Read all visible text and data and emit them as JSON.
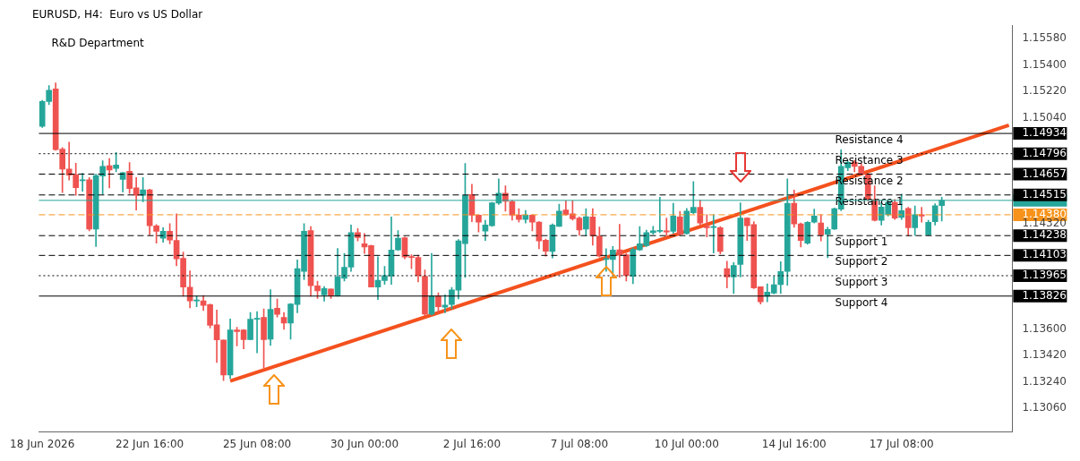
{
  "chart_data": {
    "type": "candlestick",
    "title": "EURUSD, H4:  Euro vs US Dollar",
    "annotations": [
      "R&D Department"
    ],
    "grid": false,
    "categories": [
      "18 Jun 2026",
      null,
      null,
      null,
      null,
      null,
      null,
      null,
      null,
      null,
      null,
      null,
      null,
      null,
      null,
      null,
      "22 Jun 16:00",
      null,
      null,
      null,
      null,
      null,
      null,
      null,
      null,
      null,
      null,
      null,
      null,
      null,
      null,
      null,
      "25 Jun 08:00",
      null,
      null,
      null,
      null,
      null,
      null,
      null,
      null,
      null,
      null,
      null,
      null,
      null,
      null,
      null,
      "30 Jun 00:00",
      null,
      null,
      null,
      null,
      null,
      null,
      null,
      null,
      null,
      null,
      null,
      null,
      null,
      null,
      null,
      "2 Jul 16:00",
      null,
      null,
      null,
      null,
      null,
      null,
      null,
      null,
      null,
      null,
      null,
      null,
      null,
      null,
      null,
      "7 Jul 08:00",
      null,
      null,
      null,
      null,
      null,
      null,
      null,
      null,
      null,
      null,
      null,
      null,
      null,
      null,
      null,
      "10 Jul 00:00",
      null,
      null,
      null,
      null,
      null,
      null,
      null,
      null,
      null,
      null,
      null,
      null,
      null,
      null,
      null,
      "14 Jul 16:00",
      null,
      null,
      null,
      null,
      null,
      null,
      null,
      null,
      null,
      null,
      null,
      null,
      null,
      null,
      null,
      "17 Jul 08:00",
      null,
      null,
      null,
      null,
      null,
      null,
      null,
      null,
      null,
      null,
      null,
      null,
      null,
      null,
      null,
      null
    ],
    "ohlc": [
      [
        1.14983,
        1.1516,
        1.14975,
        1.15152
      ],
      [
        1.15152,
        1.1526,
        1.1513,
        1.15228
      ],
      [
        1.15237,
        1.15278,
        1.14819,
        1.14823
      ],
      [
        1.14828,
        1.14838,
        1.14531,
        1.14691
      ],
      [
        1.14691,
        1.14874,
        1.14616,
        1.1465
      ],
      [
        1.14653,
        1.14732,
        1.14512,
        1.14565
      ],
      [
        1.14612,
        1.14663,
        1.1454,
        1.14619
      ],
      [
        1.14619,
        1.14634,
        1.14271,
        1.14282
      ],
      [
        1.14282,
        1.14657,
        1.14164,
        1.14648
      ],
      [
        1.14644,
        1.14748,
        1.14521,
        1.1471
      ],
      [
        1.14714,
        1.14763,
        1.14563,
        1.14685
      ],
      [
        1.14695,
        1.14804,
        1.14672,
        1.14719
      ],
      [
        1.14621,
        1.14668,
        1.14536,
        1.14667
      ],
      [
        1.14676,
        1.14736,
        1.14525,
        1.14559
      ],
      [
        1.14563,
        1.14634,
        1.14412,
        1.14512
      ],
      [
        1.14512,
        1.14634,
        1.14469,
        1.1455
      ],
      [
        1.1455,
        1.14555,
        1.14243,
        1.14305
      ],
      [
        1.14305,
        1.14314,
        1.14186,
        1.14267
      ],
      [
        1.1422,
        1.14292,
        1.14192,
        1.14267
      ],
      [
        1.14267,
        1.1432,
        1.14182,
        1.14207
      ],
      [
        1.14205,
        1.14386,
        1.14032,
        1.14079
      ],
      [
        1.14083,
        1.14126,
        1.13825,
        1.13887
      ],
      [
        1.13887,
        1.13998,
        1.13745,
        1.13793
      ],
      [
        1.13793,
        1.13825,
        1.13753,
        1.13798
      ],
      [
        1.13793,
        1.1383,
        1.13727,
        1.13762
      ],
      [
        1.13768,
        1.13772,
        1.13608,
        1.13627
      ],
      [
        1.13631,
        1.13731,
        1.13373,
        1.13527
      ],
      [
        1.13527,
        1.13527,
        1.1325,
        1.13288
      ],
      [
        1.13288,
        1.1367,
        1.13264,
        1.13595
      ],
      [
        1.13595,
        1.13614,
        1.13486,
        1.13584
      ],
      [
        1.13595,
        1.13599,
        1.13467,
        1.13529
      ],
      [
        1.13529,
        1.13715,
        1.13529,
        1.13668
      ],
      [
        1.13668,
        1.13721,
        1.13439,
        1.13674
      ],
      [
        1.1368,
        1.13738,
        1.13335,
        1.13529
      ],
      [
        1.13533,
        1.1387,
        1.13489,
        1.13736
      ],
      [
        1.13744,
        1.13806,
        1.13683,
        1.13702
      ],
      [
        1.1368,
        1.13715,
        1.13599,
        1.13642
      ],
      [
        1.13642,
        1.13776,
        1.13533,
        1.13772
      ],
      [
        1.13768,
        1.14073,
        1.13712,
        1.14013
      ],
      [
        1.13994,
        1.1432,
        1.13938,
        1.14267
      ],
      [
        1.14273,
        1.14299,
        1.13825,
        1.13896
      ],
      [
        1.13896,
        1.13928,
        1.1381,
        1.13862
      ],
      [
        1.13834,
        1.13891,
        1.13791,
        1.13877
      ],
      [
        1.13875,
        1.13875,
        1.1381,
        1.13828
      ],
      [
        1.13828,
        1.1415,
        1.13825,
        1.13957
      ],
      [
        1.13947,
        1.14117,
        1.13929,
        1.14023
      ],
      [
        1.14023,
        1.14311,
        1.13994,
        1.14258
      ],
      [
        1.14258,
        1.14286,
        1.14202,
        1.14224
      ],
      [
        1.14183,
        1.14252,
        1.14117,
        1.1416
      ],
      [
        1.1417,
        1.14173,
        1.13887,
        1.13887
      ],
      [
        1.13887,
        1.14094,
        1.13802,
        1.13934
      ],
      [
        1.13932,
        1.14028,
        1.13906,
        1.13966
      ],
      [
        1.13962,
        1.14365,
        1.13906,
        1.14139
      ],
      [
        1.14141,
        1.14273,
        1.14136,
        1.1422
      ],
      [
        1.14224,
        1.14228,
        1.14079,
        1.14092
      ],
      [
        1.14092,
        1.14107,
        1.14013,
        1.14089
      ],
      [
        1.14089,
        1.14104,
        1.13923,
        1.13966
      ],
      [
        1.13962,
        1.14004,
        1.13693,
        1.13703
      ],
      [
        1.13703,
        1.14117,
        1.13697,
        1.13825
      ],
      [
        1.13825,
        1.13848,
        1.13712,
        1.13753
      ],
      [
        1.1375,
        1.13834,
        1.13712,
        1.13765
      ],
      [
        1.13769,
        1.13885,
        1.1374,
        1.13868
      ],
      [
        1.13866,
        1.14211,
        1.13806,
        1.14202
      ],
      [
        1.14183,
        1.14729,
        1.13953,
        1.14512
      ],
      [
        1.14518,
        1.14588,
        1.14333,
        1.14377
      ],
      [
        1.14377,
        1.1438,
        1.14262,
        1.1433
      ],
      [
        1.14268,
        1.14343,
        1.14205,
        1.14311
      ],
      [
        1.14305,
        1.14465,
        1.143,
        1.14461
      ],
      [
        1.1446,
        1.14625,
        1.1445,
        1.14527
      ],
      [
        1.14527,
        1.14578,
        1.14405,
        1.14471
      ],
      [
        1.14471,
        1.14478,
        1.14343,
        1.14377
      ],
      [
        1.14377,
        1.14422,
        1.1433,
        1.14348
      ],
      [
        1.14348,
        1.14409,
        1.14324,
        1.14377
      ],
      [
        1.14377,
        1.1438,
        1.14271,
        1.1433
      ],
      [
        1.1433,
        1.14333,
        1.14149,
        1.14202
      ],
      [
        1.14207,
        1.14215,
        1.14098,
        1.14132
      ],
      [
        1.1413,
        1.14318,
        1.14085,
        1.14311
      ],
      [
        1.14301,
        1.14452,
        1.143,
        1.14405
      ],
      [
        1.14413,
        1.14475,
        1.14377,
        1.1438
      ],
      [
        1.14386,
        1.14475,
        1.14343,
        1.14352
      ],
      [
        1.14358,
        1.14365,
        1.14239,
        1.14277
      ],
      [
        1.14283,
        1.14422,
        1.14236,
        1.14367
      ],
      [
        1.14365,
        1.14422,
        1.14173,
        1.14236
      ],
      [
        1.14234,
        1.14296,
        1.14092,
        1.14098
      ],
      [
        1.14075,
        1.14149,
        1.13994,
        1.14079
      ],
      [
        1.14075,
        1.14164,
        1.13985,
        1.14139
      ],
      [
        1.14141,
        1.14315,
        1.13953,
        1.14107
      ],
      [
        1.14107,
        1.14117,
        1.13929,
        1.13966
      ],
      [
        1.13961,
        1.14155,
        1.1391,
        1.14145
      ],
      [
        1.14141,
        1.143,
        1.14136,
        1.14183
      ],
      [
        1.14169,
        1.14276,
        1.14163,
        1.14258
      ],
      [
        1.14258,
        1.14301,
        1.14248,
        1.14271
      ],
      [
        1.14267,
        1.14499,
        1.14258,
        1.14271
      ],
      [
        1.14271,
        1.14357,
        1.14239,
        1.14263
      ],
      [
        1.14267,
        1.14459,
        1.14254,
        1.14371
      ],
      [
        1.14365,
        1.14403,
        1.14243,
        1.14248
      ],
      [
        1.14252,
        1.14423,
        1.14248,
        1.14405
      ],
      [
        1.14393,
        1.14606,
        1.14386,
        1.14431
      ],
      [
        1.14431,
        1.1448,
        1.14305,
        1.14324
      ],
      [
        1.14301,
        1.1438,
        1.14229,
        1.14292
      ],
      [
        1.14293,
        1.1438,
        1.1412,
        1.14295
      ],
      [
        1.14292,
        1.14299,
        1.14113,
        1.1413
      ],
      [
        1.14013,
        1.14064,
        1.13881,
        1.13956
      ],
      [
        1.13956,
        1.14054,
        1.13843,
        1.14035
      ],
      [
        1.14041,
        1.14461,
        1.13956,
        1.14357
      ],
      [
        1.14357,
        1.14361,
        1.14205,
        1.14305
      ],
      [
        1.14314,
        1.14333,
        1.13877,
        1.13881
      ],
      [
        1.1389,
        1.1389,
        1.13772,
        1.13787
      ],
      [
        1.13825,
        1.13909,
        1.13787,
        1.13853
      ],
      [
        1.13847,
        1.1396,
        1.1384,
        1.13904
      ],
      [
        1.13904,
        1.1406,
        1.13843,
        1.13994
      ],
      [
        1.13994,
        1.14625,
        1.139,
        1.14459
      ],
      [
        1.14459,
        1.14549,
        1.14295,
        1.14318
      ],
      [
        1.14318,
        1.14324,
        1.1416,
        1.14205
      ],
      [
        1.14186,
        1.14333,
        1.14179,
        1.14329
      ],
      [
        1.14329,
        1.14418,
        1.14324,
        1.14371
      ],
      [
        1.14324,
        1.1438,
        1.14201,
        1.14243
      ],
      [
        1.14248,
        1.14295,
        1.14088,
        1.1428
      ],
      [
        1.14282,
        1.14427,
        1.1428,
        1.14421
      ],
      [
        1.14418,
        1.14823,
        1.14408,
        1.1471
      ],
      [
        1.147,
        1.14747,
        1.14681,
        1.14738
      ],
      [
        1.14738,
        1.14751,
        1.14672,
        1.1471
      ],
      [
        1.1471,
        1.14728,
        1.14649,
        1.14657
      ],
      [
        1.14657,
        1.14662,
        1.14474,
        1.14484
      ],
      [
        1.14484,
        1.14578,
        1.14337,
        1.14342
      ],
      [
        1.14342,
        1.14465,
        1.1431,
        1.14433
      ],
      [
        1.1438,
        1.14469,
        1.14371,
        1.14465
      ],
      [
        1.14465,
        1.14484,
        1.14348,
        1.14357
      ],
      [
        1.14361,
        1.14521,
        1.14348,
        1.14408
      ],
      [
        1.14423,
        1.14431,
        1.14235,
        1.14292
      ],
      [
        1.14292,
        1.1444,
        1.14239,
        1.1438
      ],
      [
        1.1438,
        1.14431,
        1.14329,
        1.14371
      ],
      [
        1.14243,
        1.14342,
        1.14239,
        1.14329
      ],
      [
        1.14333,
        1.14455,
        1.1431,
        1.14442
      ],
      [
        1.14442,
        1.14499,
        1.14337,
        1.14478
      ],
      null,
      null,
      null,
      null,
      null,
      null,
      null,
      null,
      null,
      null
    ],
    "colors": [
      "#26a69a",
      "#26a69a",
      "#ef5350",
      "#ef5350",
      "#ef5350",
      "#ef5350",
      "#26a69a",
      "#ef5350",
      "#26a69a",
      "#26a69a",
      "#ef5350",
      "#26a69a",
      "#26a69a",
      "#ef5350",
      "#ef5350",
      "#26a69a",
      "#ef5350",
      "#ef5350",
      "#26a69a",
      "#ef5350",
      "#ef5350",
      "#ef5350",
      "#ef5350",
      "#26a69a",
      "#ef5350",
      "#ef5350",
      "#ef5350",
      "#ef5350",
      "#26a69a",
      "#ef5350",
      "#ef5350",
      "#26a69a",
      "#26a69a",
      "#ef5350",
      "#26a69a",
      "#ef5350",
      "#ef5350",
      "#26a69a",
      "#26a69a",
      "#26a69a",
      "#ef5350",
      "#ef5350",
      "#26a69a",
      "#ef5350",
      "#26a69a",
      "#26a69a",
      "#26a69a",
      "#ef5350",
      "#ef5350",
      "#ef5350",
      "#26a69a",
      "#26a69a",
      "#26a69a",
      "#26a69a",
      "#ef5350",
      "#ef5350",
      "#ef5350",
      "#ef5350",
      "#26a69a",
      "#ef5350",
      "#26a69a",
      "#26a69a",
      "#26a69a",
      "#26a69a",
      "#ef5350",
      "#ef5350",
      "#26a69a",
      "#26a69a",
      "#26a69a",
      "#ef5350",
      "#ef5350",
      "#ef5350",
      "#26a69a",
      "#ef5350",
      "#ef5350",
      "#ef5350",
      "#26a69a",
      "#26a69a",
      "#ef5350",
      "#ef5350",
      "#ef5350",
      "#26a69a",
      "#ef5350",
      "#ef5350",
      "#26a69a",
      "#26a69a",
      "#ef5350",
      "#ef5350",
      "#26a69a",
      "#26a69a",
      "#26a69a",
      "#26a69a",
      "#26a69a",
      "#ef5350",
      "#26a69a",
      "#ef5350",
      "#26a69a",
      "#26a69a",
      "#ef5350",
      "#ef5350",
      "#26a69a",
      "#ef5350",
      "#ef5350",
      "#26a69a",
      "#26a69a",
      "#ef5350",
      "#ef5350",
      "#ef5350",
      "#26a69a",
      "#26a69a",
      "#26a69a",
      "#26a69a",
      "#ef5350",
      "#ef5350",
      "#26a69a",
      "#26a69a",
      "#ef5350",
      "#26a69a",
      "#26a69a",
      "#26a69a",
      "#26a69a",
      "#ef5350",
      "#ef5350",
      "#ef5350",
      "#ef5350",
      "#26a69a",
      "#26a69a",
      "#ef5350",
      "#26a69a",
      "#ef5350",
      "#26a69a",
      "#ef5350",
      "#26a69a",
      "#26a69a",
      "#26a69a",
      null,
      null,
      null,
      null,
      null,
      null,
      null,
      null,
      null,
      null
    ],
    "series": [
      {
        "type": "line",
        "color": "#f4511e",
        "values": [
          null,
          null,
          null,
          null,
          null,
          null,
          null,
          null,
          null,
          null,
          null,
          null,
          null,
          null,
          null,
          null,
          null,
          null,
          null,
          null,
          null,
          null,
          null,
          null,
          null,
          null,
          null,
          null,
          1.13247,
          null,
          null,
          null,
          null,
          null,
          null,
          null,
          null,
          null,
          null,
          null,
          null,
          null,
          null,
          null,
          null,
          null,
          null,
          null,
          null,
          null,
          null,
          null,
          null,
          null,
          null,
          null,
          null,
          null,
          null,
          null,
          null,
          null,
          null,
          null,
          null,
          null,
          null,
          null,
          null,
          null,
          null,
          null,
          null,
          null,
          null,
          null,
          null,
          null,
          null,
          null,
          null,
          null,
          null,
          null,
          null,
          null,
          null,
          null,
          null,
          null,
          null,
          null,
          null,
          null,
          null,
          null,
          null,
          null,
          null,
          null,
          null,
          null,
          null,
          null,
          null,
          null,
          null,
          null,
          null,
          null,
          null,
          null,
          null,
          null,
          null,
          null,
          null,
          null,
          null,
          null,
          null,
          null,
          null,
          null,
          null,
          null,
          null,
          null,
          null,
          null,
          null,
          null,
          null,
          null,
          null,
          null,
          null,
          null,
          null,
          null,
          null,
          null,
          null,
          null,
          1.1499
        ]
      }
    ],
    "ylim": [
      1.129,
      1.1567
    ],
    "yticks": [
      {
        "value": 1.1558,
        "label": "1.15580"
      },
      {
        "value": 1.154,
        "label": "1.15400"
      },
      {
        "value": 1.1522,
        "label": "1.15220"
      },
      {
        "value": 1.1504,
        "label": "1.15040"
      },
      {
        "value": 1.14934,
        "label": "1.14934"
      },
      {
        "value": 1.14796,
        "label": "1.14796"
      },
      {
        "value": 1.14657,
        "label": "1.14657"
      },
      {
        "value": 1.14515,
        "label": "1.14515"
      },
      {
        "value": 1.1438,
        "label": "1.14380"
      },
      {
        "value": 1.1432,
        "label": "1.14320"
      },
      {
        "value": 1.14238,
        "label": "1.14238"
      },
      {
        "value": 1.14103,
        "label": "1.14103"
      },
      {
        "value": 1.13965,
        "label": "1.13965"
      },
      {
        "value": 1.13826,
        "label": "1.13826"
      },
      {
        "value": 1.136,
        "label": "1.13600"
      },
      {
        "value": 1.1342,
        "label": "1.13420"
      },
      {
        "value": 1.1324,
        "label": "1.13240"
      },
      {
        "value": 1.1306,
        "label": "1.13060"
      }
    ],
    "ref_lines": [
      {
        "axis": "y",
        "value": 1.14934,
        "label": "Resistance 4",
        "color": "#000000",
        "line_style": "solid"
      },
      {
        "axis": "y",
        "value": 1.14796,
        "label": "Resistance 3",
        "color": "#000000",
        "line_style": "dotted"
      },
      {
        "axis": "y",
        "value": 1.14657,
        "label": "Resistance 2",
        "color": "#000000",
        "line_style": "dashed"
      },
      {
        "axis": "y",
        "value": 1.14515,
        "label": "Resistance 1",
        "color": "#000000",
        "line_style": "dashed"
      },
      {
        "axis": "y",
        "value": 1.14478,
        "label": null,
        "color": "#26a69a",
        "line_style": "solid"
      },
      {
        "axis": "y",
        "value": 1.1438,
        "label": null,
        "color": "#f7931a",
        "line_style": "dashed"
      },
      {
        "axis": "y",
        "value": 1.14238,
        "label": "Support 1",
        "color": "#000000",
        "line_style": "dashed"
      },
      {
        "axis": "y",
        "value": 1.14103,
        "label": "Support 2",
        "color": "#000000",
        "line_style": "dashed"
      },
      {
        "axis": "y",
        "value": 1.13965,
        "label": "Support 3",
        "color": "#000000",
        "line_style": "dotted"
      },
      {
        "axis": "y",
        "value": 1.13826,
        "label": "Support 4",
        "color": "#000000",
        "line_style": "solid"
      }
    ]
  }
}
